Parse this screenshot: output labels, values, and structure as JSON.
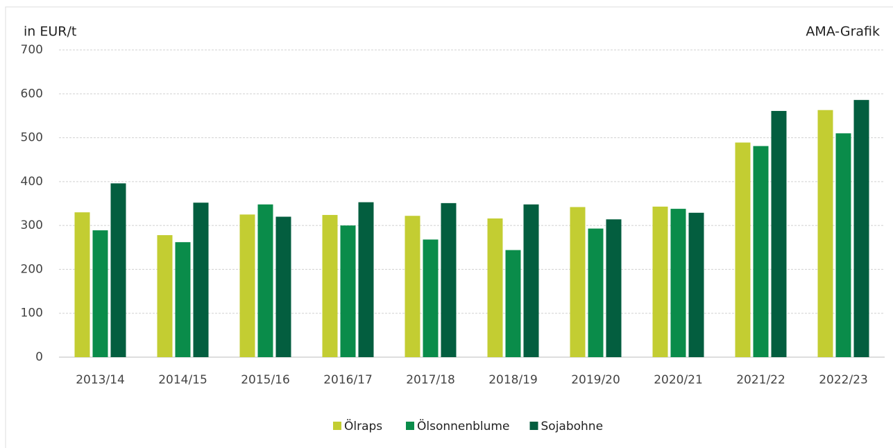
{
  "chart_data": {
    "type": "bar",
    "y_label": "in EUR/t",
    "annotation": "AMA-Grafik",
    "categories": [
      "2013/14",
      "2014/15",
      "2015/16",
      "2016/17",
      "2017/18",
      "2018/19",
      "2019/20",
      "2020/21",
      "2021/22",
      "2022/23"
    ],
    "series": [
      {
        "name": "Ölraps",
        "color": "#c3cd32",
        "values": [
          330,
          278,
          325,
          324,
          322,
          316,
          342,
          343,
          489,
          563
        ]
      },
      {
        "name": "Ölsonnenblume",
        "color": "#0a8c4a",
        "values": [
          289,
          262,
          348,
          300,
          268,
          244,
          293,
          338,
          481,
          510
        ]
      },
      {
        "name": "Sojabohne",
        "color": "#035e3f",
        "values": [
          396,
          352,
          320,
          353,
          351,
          348,
          314,
          329,
          561,
          586
        ]
      }
    ],
    "ylim": [
      0,
      700
    ],
    "yticks": [
      0,
      100,
      200,
      300,
      400,
      500,
      600,
      700
    ],
    "grid": true,
    "legend": "bottom"
  }
}
